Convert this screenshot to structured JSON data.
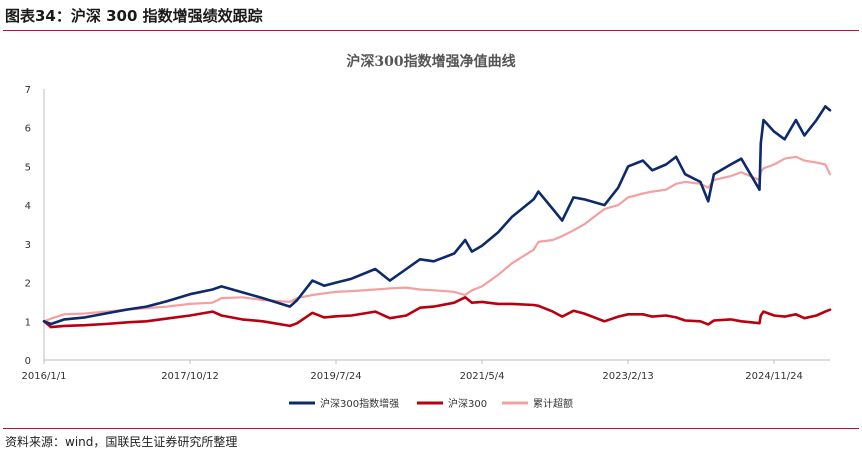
{
  "header": {
    "title": "图表34：沪深 300 指数增强绩效跟踪"
  },
  "footer": {
    "source": "资料来源：wind，国联民生证券研究所整理"
  },
  "chart_data": {
    "type": "line",
    "title": "沪深300指数增强净值曲线",
    "xlabel": "",
    "ylabel": "",
    "ylim": [
      0,
      7
    ],
    "yticks": [
      0,
      1,
      2,
      3,
      4,
      5,
      6,
      7
    ],
    "xlim": [
      "2016-01-01",
      "2025-07-31"
    ],
    "xticks": [
      "2016/1/1",
      "2017/10/12",
      "2019/7/24",
      "2021/5/4",
      "2023/2/13",
      "2024/11/24"
    ],
    "grid": false,
    "legend_position": "bottom",
    "series": [
      {
        "name": "沪深300指数增强",
        "color": "#0d2a6b",
        "points": [
          [
            "2016-01-01",
            1.0
          ],
          [
            "2016-02-01",
            0.93
          ],
          [
            "2016-04-01",
            1.05
          ],
          [
            "2016-07-01",
            1.1
          ],
          [
            "2016-10-01",
            1.2
          ],
          [
            "2017-01-01",
            1.3
          ],
          [
            "2017-04-01",
            1.38
          ],
          [
            "2017-07-01",
            1.52
          ],
          [
            "2017-10-12",
            1.7
          ],
          [
            "2018-01-20",
            1.82
          ],
          [
            "2018-03-01",
            1.9
          ],
          [
            "2018-06-01",
            1.75
          ],
          [
            "2018-09-01",
            1.6
          ],
          [
            "2018-12-31",
            1.38
          ],
          [
            "2019-02-01",
            1.55
          ],
          [
            "2019-04-10",
            2.05
          ],
          [
            "2019-06-01",
            1.92
          ],
          [
            "2019-07-24",
            2.0
          ],
          [
            "2019-10-01",
            2.1
          ],
          [
            "2020-01-15",
            2.35
          ],
          [
            "2020-03-20",
            2.05
          ],
          [
            "2020-06-01",
            2.35
          ],
          [
            "2020-08-01",
            2.6
          ],
          [
            "2020-10-01",
            2.55
          ],
          [
            "2020-12-31",
            2.75
          ],
          [
            "2021-02-18",
            3.1
          ],
          [
            "2021-03-20",
            2.8
          ],
          [
            "2021-05-04",
            2.95
          ],
          [
            "2021-07-15",
            3.3
          ],
          [
            "2021-09-15",
            3.7
          ],
          [
            "2021-12-20",
            4.15
          ],
          [
            "2022-01-10",
            4.35
          ],
          [
            "2022-03-15",
            3.9
          ],
          [
            "2022-04-26",
            3.6
          ],
          [
            "2022-06-15",
            4.2
          ],
          [
            "2022-08-01",
            4.15
          ],
          [
            "2022-10-31",
            4.0
          ],
          [
            "2022-12-31",
            4.45
          ],
          [
            "2023-02-13",
            5.0
          ],
          [
            "2023-04-20",
            5.15
          ],
          [
            "2023-06-01",
            4.9
          ],
          [
            "2023-08-01",
            5.05
          ],
          [
            "2023-09-15",
            5.25
          ],
          [
            "2023-10-25",
            4.8
          ],
          [
            "2024-01-01",
            4.6
          ],
          [
            "2024-02-05",
            4.1
          ],
          [
            "2024-03-01",
            4.8
          ],
          [
            "2024-05-15",
            5.05
          ],
          [
            "2024-07-01",
            5.2
          ],
          [
            "2024-09-20",
            4.4
          ],
          [
            "2024-09-26",
            5.6
          ],
          [
            "2024-10-08",
            6.2
          ],
          [
            "2024-11-24",
            5.9
          ],
          [
            "2025-01-10",
            5.7
          ],
          [
            "2025-03-01",
            6.2
          ],
          [
            "2025-04-08",
            5.8
          ],
          [
            "2025-06-01",
            6.2
          ],
          [
            "2025-07-10",
            6.55
          ],
          [
            "2025-07-31",
            6.45
          ]
        ]
      },
      {
        "name": "沪深300",
        "color": "#b8000f",
        "points": [
          [
            "2016-01-01",
            1.0
          ],
          [
            "2016-02-01",
            0.85
          ],
          [
            "2016-04-01",
            0.88
          ],
          [
            "2016-07-01",
            0.9
          ],
          [
            "2016-10-01",
            0.93
          ],
          [
            "2017-01-01",
            0.97
          ],
          [
            "2017-04-01",
            1.0
          ],
          [
            "2017-07-01",
            1.07
          ],
          [
            "2017-10-12",
            1.15
          ],
          [
            "2018-01-20",
            1.25
          ],
          [
            "2018-03-01",
            1.15
          ],
          [
            "2018-06-01",
            1.05
          ],
          [
            "2018-09-01",
            1.0
          ],
          [
            "2018-12-31",
            0.88
          ],
          [
            "2019-02-01",
            0.95
          ],
          [
            "2019-04-10",
            1.22
          ],
          [
            "2019-06-01",
            1.1
          ],
          [
            "2019-07-24",
            1.13
          ],
          [
            "2019-10-01",
            1.15
          ],
          [
            "2020-01-15",
            1.25
          ],
          [
            "2020-03-20",
            1.08
          ],
          [
            "2020-06-01",
            1.15
          ],
          [
            "2020-08-01",
            1.35
          ],
          [
            "2020-10-01",
            1.38
          ],
          [
            "2020-12-31",
            1.48
          ],
          [
            "2021-02-18",
            1.62
          ],
          [
            "2021-03-20",
            1.48
          ],
          [
            "2021-05-04",
            1.5
          ],
          [
            "2021-07-15",
            1.45
          ],
          [
            "2021-09-15",
            1.45
          ],
          [
            "2021-12-20",
            1.42
          ],
          [
            "2022-01-10",
            1.4
          ],
          [
            "2022-03-15",
            1.25
          ],
          [
            "2022-04-26",
            1.12
          ],
          [
            "2022-06-15",
            1.27
          ],
          [
            "2022-08-01",
            1.2
          ],
          [
            "2022-10-31",
            1.0
          ],
          [
            "2022-12-31",
            1.12
          ],
          [
            "2023-02-13",
            1.18
          ],
          [
            "2023-04-20",
            1.18
          ],
          [
            "2023-06-01",
            1.12
          ],
          [
            "2023-08-01",
            1.15
          ],
          [
            "2023-09-15",
            1.1
          ],
          [
            "2023-10-25",
            1.02
          ],
          [
            "2024-01-01",
            1.0
          ],
          [
            "2024-02-05",
            0.92
          ],
          [
            "2024-03-01",
            1.02
          ],
          [
            "2024-05-15",
            1.05
          ],
          [
            "2024-07-01",
            1.0
          ],
          [
            "2024-09-20",
            0.95
          ],
          [
            "2024-09-26",
            1.15
          ],
          [
            "2024-10-08",
            1.25
          ],
          [
            "2024-11-24",
            1.15
          ],
          [
            "2025-01-10",
            1.12
          ],
          [
            "2025-03-01",
            1.18
          ],
          [
            "2025-04-08",
            1.08
          ],
          [
            "2025-06-01",
            1.15
          ],
          [
            "2025-07-10",
            1.25
          ],
          [
            "2025-07-31",
            1.3
          ]
        ]
      },
      {
        "name": "累计超额",
        "color": "#f4a0a0",
        "points": [
          [
            "2016-01-01",
            1.0
          ],
          [
            "2016-02-01",
            1.07
          ],
          [
            "2016-04-01",
            1.18
          ],
          [
            "2016-07-01",
            1.2
          ],
          [
            "2016-10-01",
            1.25
          ],
          [
            "2017-01-01",
            1.3
          ],
          [
            "2017-04-01",
            1.34
          ],
          [
            "2017-07-01",
            1.38
          ],
          [
            "2017-10-12",
            1.45
          ],
          [
            "2018-01-20",
            1.48
          ],
          [
            "2018-03-01",
            1.6
          ],
          [
            "2018-06-01",
            1.62
          ],
          [
            "2018-09-01",
            1.55
          ],
          [
            "2018-12-31",
            1.5
          ],
          [
            "2019-02-01",
            1.6
          ],
          [
            "2019-04-10",
            1.68
          ],
          [
            "2019-06-01",
            1.72
          ],
          [
            "2019-07-24",
            1.76
          ],
          [
            "2019-10-01",
            1.78
          ],
          [
            "2020-01-15",
            1.82
          ],
          [
            "2020-03-20",
            1.85
          ],
          [
            "2020-06-01",
            1.87
          ],
          [
            "2020-08-01",
            1.82
          ],
          [
            "2020-10-01",
            1.8
          ],
          [
            "2020-12-31",
            1.76
          ],
          [
            "2021-02-18",
            1.68
          ],
          [
            "2021-03-20",
            1.8
          ],
          [
            "2021-05-04",
            1.9
          ],
          [
            "2021-07-15",
            2.2
          ],
          [
            "2021-09-15",
            2.5
          ],
          [
            "2021-12-20",
            2.85
          ],
          [
            "2022-01-10",
            3.05
          ],
          [
            "2022-03-15",
            3.1
          ],
          [
            "2022-04-26",
            3.2
          ],
          [
            "2022-06-15",
            3.35
          ],
          [
            "2022-08-01",
            3.5
          ],
          [
            "2022-10-31",
            3.9
          ],
          [
            "2022-12-31",
            4.0
          ],
          [
            "2023-02-13",
            4.2
          ],
          [
            "2023-04-20",
            4.3
          ],
          [
            "2023-06-01",
            4.35
          ],
          [
            "2023-08-01",
            4.4
          ],
          [
            "2023-09-15",
            4.55
          ],
          [
            "2023-10-25",
            4.6
          ],
          [
            "2024-01-01",
            4.55
          ],
          [
            "2024-02-05",
            4.45
          ],
          [
            "2024-03-01",
            4.65
          ],
          [
            "2024-05-15",
            4.75
          ],
          [
            "2024-07-01",
            4.85
          ],
          [
            "2024-09-20",
            4.65
          ],
          [
            "2024-09-26",
            4.85
          ],
          [
            "2024-10-08",
            4.95
          ],
          [
            "2024-11-24",
            5.05
          ],
          [
            "2025-01-10",
            5.2
          ],
          [
            "2025-03-01",
            5.25
          ],
          [
            "2025-04-08",
            5.15
          ],
          [
            "2025-06-01",
            5.1
          ],
          [
            "2025-07-10",
            5.05
          ],
          [
            "2025-07-31",
            4.8
          ]
        ]
      }
    ]
  }
}
